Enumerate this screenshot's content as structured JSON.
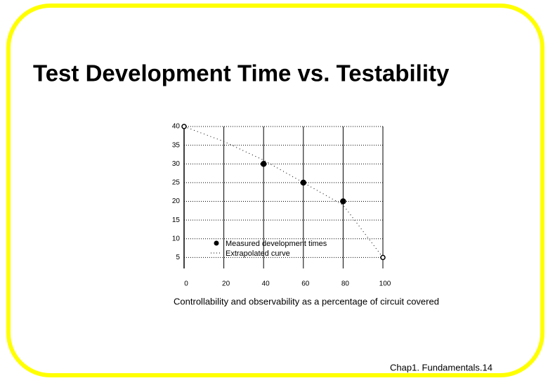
{
  "slide": {
    "title": "Test Development Time vs. Testability",
    "footer": "Chap1. Fundamentals.14"
  },
  "chart_data": {
    "type": "line",
    "xlabel": "Controllability and observability as a percentage of circuit covered",
    "xlim": [
      0,
      100
    ],
    "xticks": [
      0,
      20,
      40,
      60,
      80,
      100
    ],
    "ylim": [
      0,
      40
    ],
    "yticks": [
      5,
      10,
      15,
      20,
      25,
      30,
      35,
      40
    ],
    "grid": true,
    "series": [
      {
        "name": "Measured development times",
        "color": "#000000",
        "marker": "filled",
        "line": false,
        "x": [
          40,
          60,
          80
        ],
        "values": [
          30,
          25,
          20
        ]
      },
      {
        "name": "Extrapolated curve",
        "color": "#000000",
        "marker": "hollow",
        "line": true,
        "x": [
          0,
          20,
          40,
          60,
          80,
          100
        ],
        "values": [
          40,
          36,
          31,
          25,
          19,
          5
        ]
      }
    ]
  }
}
